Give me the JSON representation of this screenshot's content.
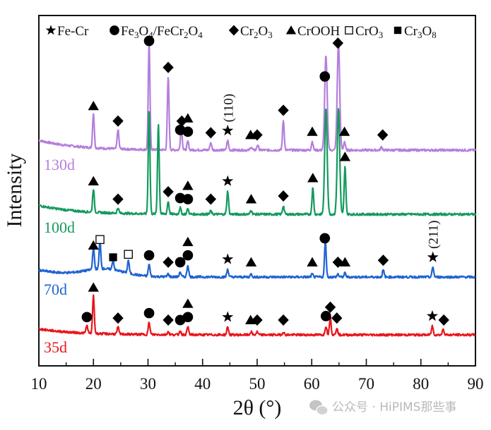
{
  "chart_data": {
    "type": "line",
    "title": "",
    "xlabel": "2θ (°)",
    "ylabel": "Intensity",
    "xlim": [
      10,
      90
    ],
    "xticks": [
      10,
      20,
      30,
      40,
      50,
      60,
      70,
      80,
      90
    ],
    "xticks_minor": [
      15,
      25,
      35,
      45,
      55,
      65,
      75,
      85
    ],
    "yticks": [],
    "grid": false,
    "legend": {
      "placement": "top",
      "entries": [
        {
          "symbol": "star",
          "label": "Fe-Cr"
        },
        {
          "symbol": "circle",
          "label": "Fe₃O₄/FeCr₂O₄"
        },
        {
          "symbol": "diamond",
          "label": "Cr₂O₃"
        },
        {
          "symbol": "triangle",
          "label": "CrOOH"
        },
        {
          "symbol": "square-open",
          "label": "CrO₃"
        },
        {
          "symbol": "square",
          "label": "Cr₃O₈"
        }
      ]
    },
    "series": [
      {
        "name": "130d",
        "color": "#b57edc",
        "baseline": 0.78,
        "offset_rank": 4,
        "peaks": [
          {
            "x": 20.0,
            "h": 0.32
          },
          {
            "x": 24.5,
            "h": 0.18
          },
          {
            "x": 30.2,
            "h": 1.0
          },
          {
            "x": 33.7,
            "h": 0.68
          },
          {
            "x": 36.1,
            "h": 0.22
          },
          {
            "x": 37.3,
            "h": 0.08
          },
          {
            "x": 41.5,
            "h": 0.07
          },
          {
            "x": 44.6,
            "h": 0.09
          },
          {
            "x": 48.9,
            "h": 0.03
          },
          {
            "x": 50.1,
            "h": 0.05
          },
          {
            "x": 54.8,
            "h": 0.28
          },
          {
            "x": 60.1,
            "h": 0.08
          },
          {
            "x": 62.6,
            "h": 0.88
          },
          {
            "x": 64.9,
            "h": 1.0
          },
          {
            "x": 66.0,
            "h": 0.08
          },
          {
            "x": 72.8,
            "h": 0.03
          }
        ],
        "markers": [
          {
            "x": 20.0,
            "symbol": "triangle"
          },
          {
            "x": 24.5,
            "symbol": "diamond"
          },
          {
            "x": 30.2,
            "symbol": "circle"
          },
          {
            "x": 33.7,
            "symbol": "diamond"
          },
          {
            "x": 35.9,
            "symbol": "circle"
          },
          {
            "x": 36.2,
            "symbol": "diamond"
          },
          {
            "x": 37.3,
            "symbol": "circle"
          },
          {
            "x": 37.3,
            "symbol": "triangle"
          },
          {
            "x": 41.5,
            "symbol": "diamond"
          },
          {
            "x": 44.6,
            "symbol": "star",
            "annotation": "(110)"
          },
          {
            "x": 48.8,
            "symbol": "triangle"
          },
          {
            "x": 50.0,
            "symbol": "diamond"
          },
          {
            "x": 54.8,
            "symbol": "diamond"
          },
          {
            "x": 60.1,
            "symbol": "triangle"
          },
          {
            "x": 62.4,
            "symbol": "circle"
          },
          {
            "x": 64.8,
            "symbol": "diamond"
          },
          {
            "x": 66.0,
            "symbol": "triangle"
          },
          {
            "x": 73.0,
            "symbol": "diamond"
          }
        ]
      },
      {
        "name": "100d",
        "color": "#159a5e",
        "baseline": 0.56,
        "offset_rank": 3,
        "peaks": [
          {
            "x": 20.0,
            "h": 0.22
          },
          {
            "x": 24.5,
            "h": 0.05
          },
          {
            "x": 30.2,
            "h": 1.0
          },
          {
            "x": 31.9,
            "h": 0.85
          },
          {
            "x": 33.7,
            "h": 0.12
          },
          {
            "x": 35.9,
            "h": 0.06
          },
          {
            "x": 37.3,
            "h": 0.05
          },
          {
            "x": 41.5,
            "h": 0.03
          },
          {
            "x": 44.6,
            "h": 0.22
          },
          {
            "x": 48.9,
            "h": 0.04
          },
          {
            "x": 54.8,
            "h": 0.08
          },
          {
            "x": 60.2,
            "h": 0.25
          },
          {
            "x": 62.6,
            "h": 1.0
          },
          {
            "x": 64.9,
            "h": 1.0
          },
          {
            "x": 66.1,
            "h": 0.45
          }
        ],
        "markers": [
          {
            "x": 20.0,
            "symbol": "triangle"
          },
          {
            "x": 24.5,
            "symbol": "diamond"
          },
          {
            "x": 33.7,
            "symbol": "diamond"
          },
          {
            "x": 35.9,
            "symbol": "circle"
          },
          {
            "x": 37.3,
            "symbol": "circle"
          },
          {
            "x": 37.3,
            "symbol": "triangle"
          },
          {
            "x": 41.5,
            "symbol": "diamond"
          },
          {
            "x": 44.6,
            "symbol": "star"
          },
          {
            "x": 48.9,
            "symbol": "triangle"
          },
          {
            "x": 54.8,
            "symbol": "diamond"
          },
          {
            "x": 60.2,
            "symbol": "triangle"
          },
          {
            "x": 66.1,
            "symbol": "triangle"
          }
        ]
      },
      {
        "name": "70d",
        "color": "#1f63d1",
        "baseline": 0.34,
        "offset_rank": 2,
        "peaks": [
          {
            "x": 20.0,
            "h": 0.22
          },
          {
            "x": 21.2,
            "h": 0.28
          },
          {
            "x": 23.6,
            "h": 0.1
          },
          {
            "x": 26.4,
            "h": 0.13
          },
          {
            "x": 30.2,
            "h": 0.12
          },
          {
            "x": 33.7,
            "h": 0.03
          },
          {
            "x": 35.9,
            "h": 0.05
          },
          {
            "x": 37.3,
            "h": 0.12
          },
          {
            "x": 44.6,
            "h": 0.08
          },
          {
            "x": 48.9,
            "h": 0.03
          },
          {
            "x": 60.1,
            "h": 0.03
          },
          {
            "x": 62.5,
            "h": 0.36
          },
          {
            "x": 64.8,
            "h": 0.03
          },
          {
            "x": 66.1,
            "h": 0.04
          },
          {
            "x": 73.1,
            "h": 0.07
          },
          {
            "x": 82.2,
            "h": 0.1
          }
        ],
        "markers": [
          {
            "x": 20.0,
            "symbol": "triangle"
          },
          {
            "x": 21.2,
            "symbol": "square-open"
          },
          {
            "x": 23.6,
            "symbol": "square"
          },
          {
            "x": 26.4,
            "symbol": "square-open"
          },
          {
            "x": 30.2,
            "symbol": "circle"
          },
          {
            "x": 33.7,
            "symbol": "diamond"
          },
          {
            "x": 35.9,
            "symbol": "circle"
          },
          {
            "x": 37.3,
            "symbol": "circle"
          },
          {
            "x": 37.3,
            "symbol": "triangle"
          },
          {
            "x": 44.6,
            "symbol": "star"
          },
          {
            "x": 48.9,
            "symbol": "triangle"
          },
          {
            "x": 60.1,
            "symbol": "triangle"
          },
          {
            "x": 62.4,
            "symbol": "circle"
          },
          {
            "x": 64.8,
            "symbol": "diamond"
          },
          {
            "x": 66.1,
            "symbol": "triangle"
          },
          {
            "x": 73.1,
            "symbol": "diamond"
          },
          {
            "x": 82.2,
            "symbol": "star",
            "annotation": "(211)"
          }
        ]
      },
      {
        "name": "35d",
        "color": "#e8161b",
        "baseline": 0.12,
        "offset_rank": 1,
        "peaks": [
          {
            "x": 18.8,
            "h": 0.08
          },
          {
            "x": 20.0,
            "h": 0.38
          },
          {
            "x": 24.5,
            "h": 0.07
          },
          {
            "x": 30.2,
            "h": 0.12
          },
          {
            "x": 33.7,
            "h": 0.03
          },
          {
            "x": 35.9,
            "h": 0.04
          },
          {
            "x": 37.3,
            "h": 0.08
          },
          {
            "x": 44.6,
            "h": 0.08
          },
          {
            "x": 48.9,
            "h": 0.03
          },
          {
            "x": 50.0,
            "h": 0.03
          },
          {
            "x": 54.8,
            "h": 0.03
          },
          {
            "x": 62.6,
            "h": 0.09
          },
          {
            "x": 63.4,
            "h": 0.18
          },
          {
            "x": 64.6,
            "h": 0.07
          },
          {
            "x": 82.1,
            "h": 0.09
          },
          {
            "x": 84.1,
            "h": 0.06
          }
        ],
        "markers": [
          {
            "x": 18.8,
            "symbol": "circle"
          },
          {
            "x": 20.0,
            "symbol": "triangle"
          },
          {
            "x": 24.5,
            "symbol": "diamond"
          },
          {
            "x": 30.2,
            "symbol": "circle"
          },
          {
            "x": 33.7,
            "symbol": "diamond"
          },
          {
            "x": 35.9,
            "symbol": "circle"
          },
          {
            "x": 37.3,
            "symbol": "circle"
          },
          {
            "x": 37.3,
            "symbol": "triangle"
          },
          {
            "x": 44.6,
            "symbol": "star"
          },
          {
            "x": 48.8,
            "symbol": "triangle"
          },
          {
            "x": 50.0,
            "symbol": "diamond"
          },
          {
            "x": 54.8,
            "symbol": "diamond"
          },
          {
            "x": 62.6,
            "symbol": "circle"
          },
          {
            "x": 63.4,
            "symbol": "diamond"
          },
          {
            "x": 64.6,
            "symbol": "diamond"
          },
          {
            "x": 82.1,
            "symbol": "star"
          },
          {
            "x": 84.2,
            "symbol": "diamond"
          }
        ]
      }
    ]
  },
  "watermark": "公众号 · HiPIMS那些事"
}
